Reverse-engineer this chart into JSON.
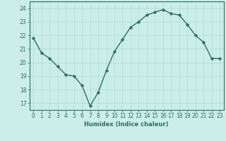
{
  "x": [
    0,
    1,
    2,
    3,
    4,
    5,
    6,
    7,
    8,
    9,
    10,
    11,
    12,
    13,
    14,
    15,
    16,
    17,
    18,
    19,
    20,
    21,
    22,
    23
  ],
  "y": [
    21.8,
    20.7,
    20.3,
    19.7,
    19.1,
    19.0,
    18.3,
    16.8,
    17.8,
    19.4,
    20.8,
    21.7,
    22.6,
    23.0,
    23.5,
    23.7,
    23.9,
    23.6,
    23.5,
    22.8,
    22.0,
    21.5,
    20.3,
    20.3
  ],
  "line_color": "#2d6e65",
  "marker": "D",
  "markersize": 2.2,
  "bg_color": "#cceee8",
  "grid_color": "#aaddcc",
  "xlabel": "Humidex (Indice chaleur)",
  "ylim": [
    16.5,
    24.5
  ],
  "yticks": [
    17,
    18,
    19,
    20,
    21,
    22,
    23,
    24
  ],
  "xticks": [
    0,
    1,
    2,
    3,
    4,
    5,
    6,
    7,
    8,
    9,
    10,
    11,
    12,
    13,
    14,
    15,
    16,
    17,
    18,
    19,
    20,
    21,
    22,
    23
  ],
  "xlabel_fontsize": 6.0,
  "tick_fontsize": 5.5,
  "linewidth": 1.0
}
